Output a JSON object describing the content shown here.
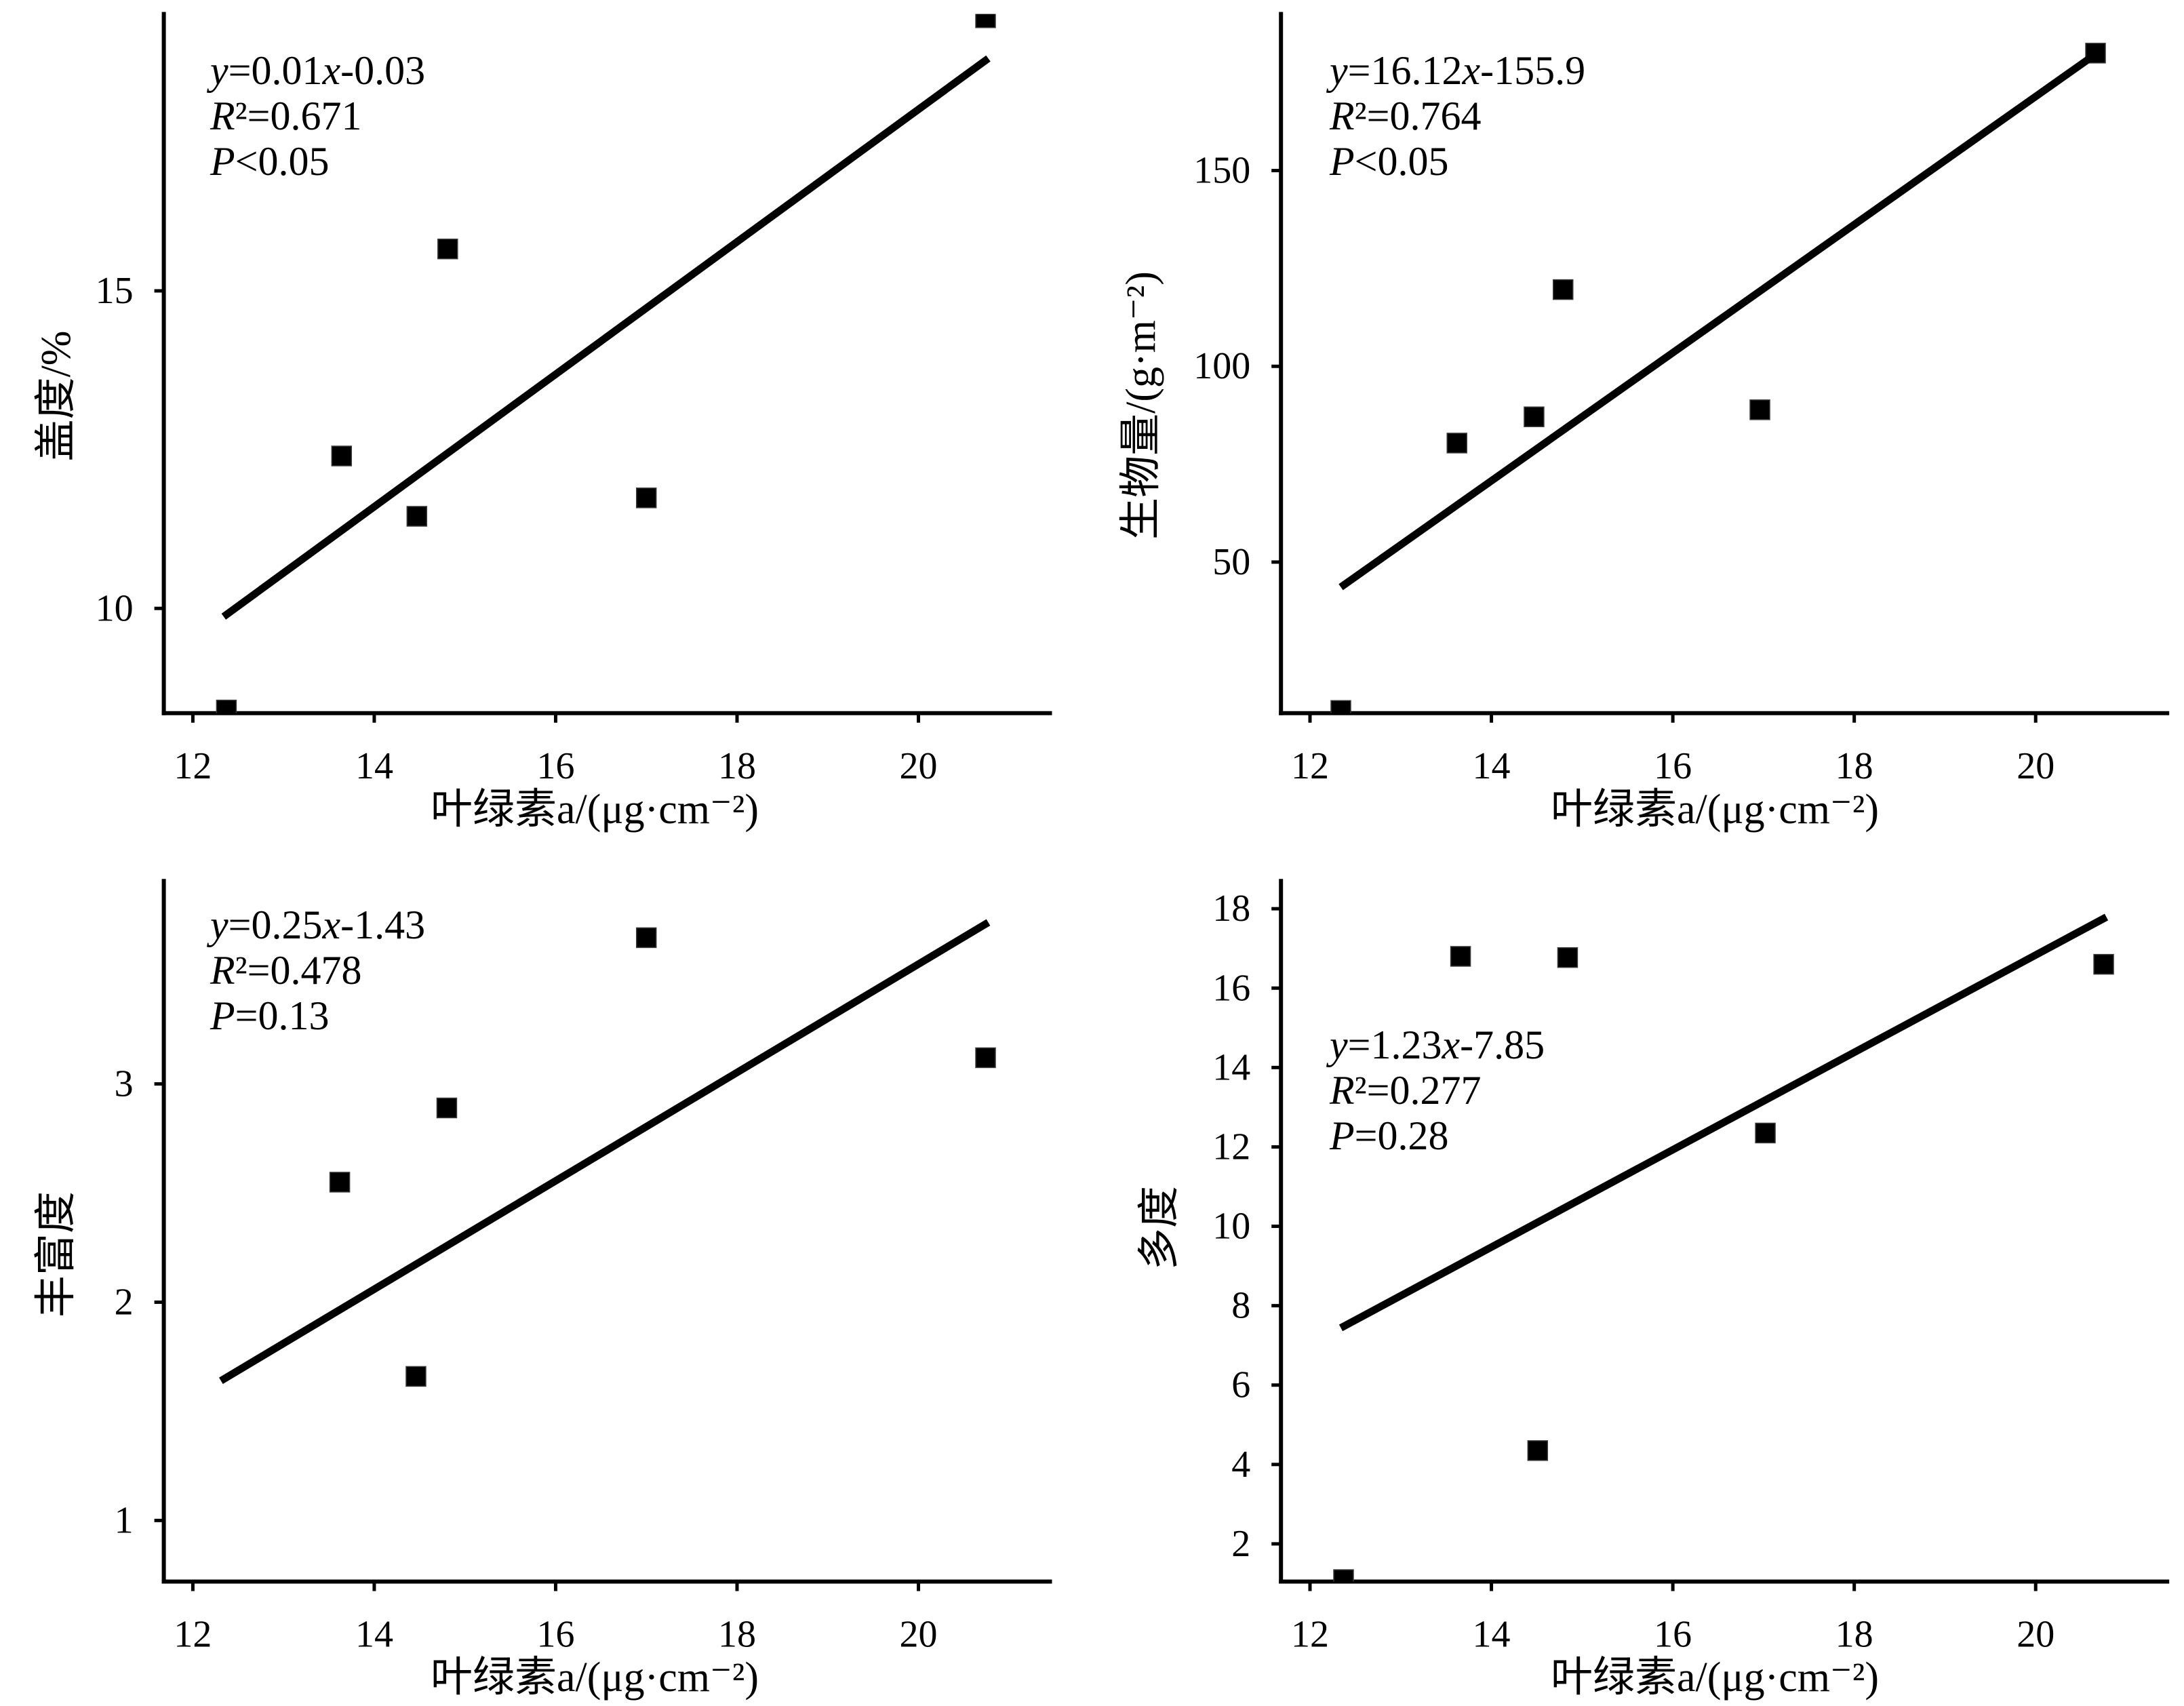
{
  "colors": {
    "background": "#ffffff",
    "ink": "#000000"
  },
  "chart_data": [
    {
      "type": "scatter",
      "xlabel": "叶绿素a/(μg·cm⁻²)",
      "ylabel": "盖度/%",
      "xlim": [
        11.68,
        21.45
      ],
      "ylim": [
        8.35,
        19.36
      ],
      "xticks": [
        12,
        14,
        16,
        18,
        20
      ],
      "yticks": [
        10,
        15
      ],
      "grid": false,
      "points": {
        "x": [
          12.37,
          13.64,
          14.47,
          14.81,
          17.0,
          20.74
        ],
        "y": [
          8.4,
          12.4,
          11.45,
          15.66,
          11.74,
          19.3
        ]
      },
      "fit": {
        "x": [
          12.34,
          20.77
        ],
        "y": [
          9.87,
          18.66
        ]
      },
      "annotation": [
        "y=0.01x-0.03",
        "R²=0.671",
        "P<0.05"
      ]
    },
    {
      "type": "scatter",
      "xlabel": "叶绿素a/(μg·cm⁻²)",
      "ylabel": "生物量/(g·m⁻²)",
      "xlim": [
        11.68,
        21.45
      ],
      "ylim": [
        11.4,
        190
      ],
      "xticks": [
        12,
        14,
        16,
        18,
        20
      ],
      "yticks": [
        50,
        100,
        150
      ],
      "grid": false,
      "points": {
        "x": [
          12.34,
          13.62,
          14.47,
          14.79,
          16.96,
          20.66
        ],
        "y": [
          12.1,
          80.4,
          87.1,
          119.6,
          88.9,
          180.0
        ]
      },
      "fit": {
        "x": [
          12.34,
          20.72
        ],
        "y": [
          43.6,
          180.7
        ]
      },
      "annotation": [
        "y=16.12x-155.9",
        "R²=0.764",
        "P<0.05"
      ]
    },
    {
      "type": "scatter",
      "xlabel": "叶绿素a/(μg·cm⁻²)",
      "ylabel": "丰富度",
      "xlim": [
        11.68,
        21.45
      ],
      "ylim": [
        0.72,
        3.93
      ],
      "xticks": [
        12,
        14,
        16,
        18,
        20
      ],
      "yticks": [
        1,
        2,
        3
      ],
      "grid": false,
      "points": {
        "x": [
          13.62,
          14.46,
          14.8,
          17.0,
          20.74
        ],
        "y": [
          2.55,
          1.66,
          2.89,
          3.67,
          3.12
        ]
      },
      "fit": {
        "x": [
          12.31,
          20.77
        ],
        "y": [
          1.64,
          3.74
        ]
      },
      "annotation": [
        "y=0.25x-1.43",
        "R²=0.478",
        "P=0.13"
      ]
    },
    {
      "type": "scatter",
      "xlabel": "叶绿素a/(μg·cm⁻²)",
      "ylabel": "多度",
      "xlim": [
        11.68,
        21.45
      ],
      "ylim": [
        1.05,
        18.7
      ],
      "xticks": [
        12,
        14,
        16,
        18,
        20
      ],
      "yticks": [
        2,
        4,
        6,
        8,
        10,
        12,
        14,
        16,
        18
      ],
      "grid": false,
      "points": {
        "x": [
          12.37,
          13.66,
          14.51,
          14.84,
          17.02,
          20.75
        ],
        "y": [
          1.1,
          16.8,
          4.35,
          16.77,
          12.35,
          16.6
        ]
      },
      "fit": {
        "x": [
          12.34,
          20.78
        ],
        "y": [
          7.44,
          17.79
        ]
      },
      "annotation": [
        "y=1.23x-7.85",
        "R²=0.277",
        "P=0.28"
      ]
    }
  ]
}
